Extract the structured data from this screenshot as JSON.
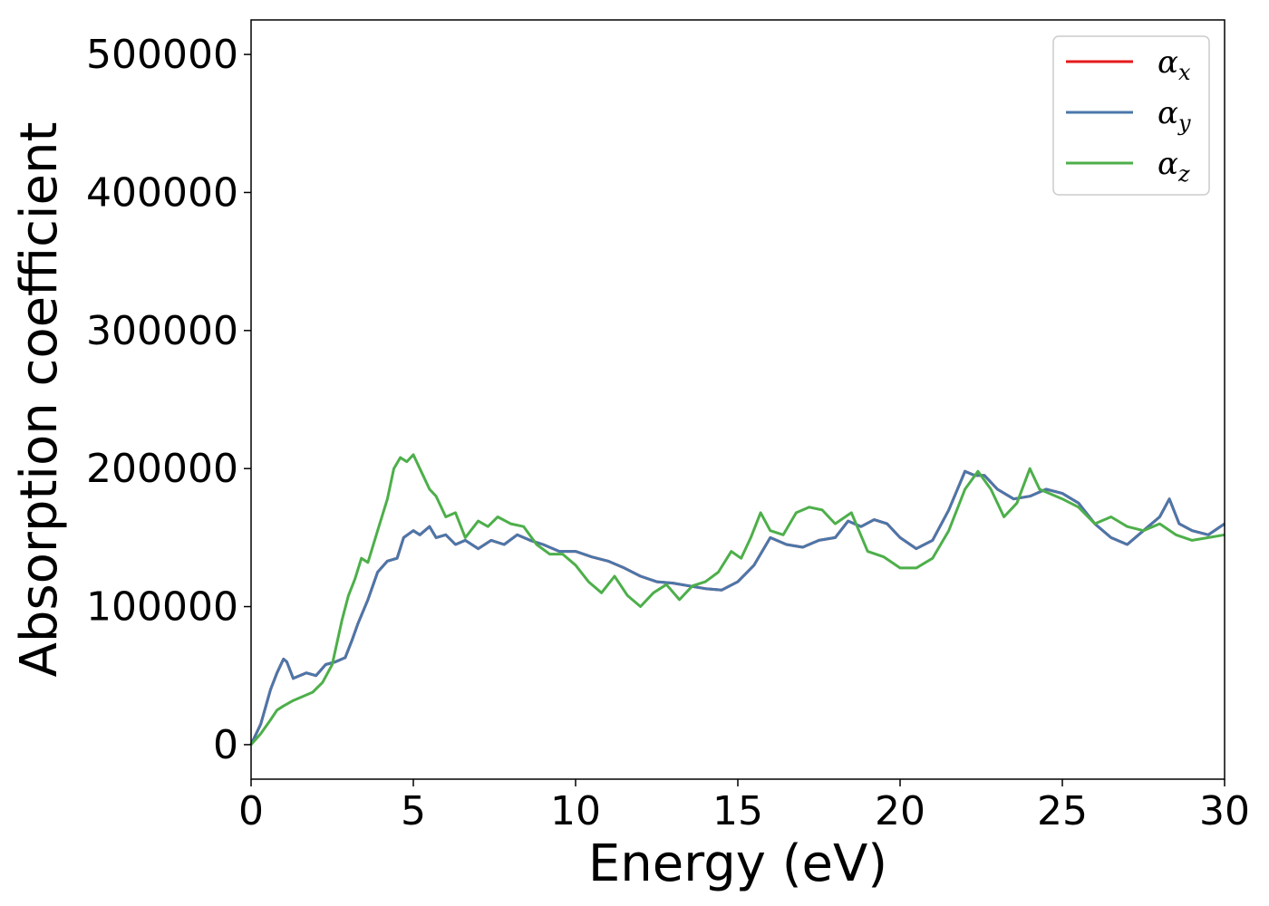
{
  "chart_data": {
    "type": "line",
    "xlabel": "Energy (eV)",
    "ylabel": "Absorption coefficient",
    "xlim": [
      0,
      30
    ],
    "ylim": [
      -25000,
      525000
    ],
    "xticks": [
      0,
      5,
      10,
      15,
      20,
      25,
      30
    ],
    "xtick_labels": [
      "0",
      "5",
      "10",
      "15",
      "20",
      "25",
      "30"
    ],
    "yticks": [
      0,
      100000,
      200000,
      300000,
      400000,
      500000
    ],
    "ytick_labels": [
      "0",
      "100000",
      "200000",
      "300000",
      "400000",
      "500000"
    ],
    "grid": false,
    "legend_position": "top-right",
    "series": [
      {
        "name": "α",
        "subscript": "x",
        "color": "#e41a1c",
        "x": [
          0,
          0.3,
          0.6,
          0.8,
          1.0,
          1.1,
          1.3,
          1.5,
          1.7,
          2.0,
          2.3,
          2.6,
          2.9,
          3.1,
          3.3,
          3.6,
          3.9,
          4.2,
          4.5,
          4.7,
          5.0,
          5.2,
          5.5,
          5.7,
          6.0,
          6.3,
          6.6,
          7.0,
          7.4,
          7.8,
          8.2,
          8.6,
          9.0,
          9.5,
          10.0,
          10.5,
          11.0,
          11.5,
          12.0,
          12.5,
          13.0,
          13.5,
          14.0,
          14.5,
          15.0,
          15.5,
          16.0,
          16.5,
          17.0,
          17.5,
          18.0,
          18.4,
          18.8,
          19.2,
          19.6,
          20.0,
          20.5,
          21.0,
          21.5,
          22.0,
          22.3,
          22.6,
          23.0,
          23.5,
          24.0,
          24.5,
          25.0,
          25.5,
          26.0,
          26.5,
          27.0,
          27.5,
          28.0,
          28.3,
          28.6,
          29.0,
          29.5,
          30.0
        ],
        "y": [
          0,
          15000,
          40000,
          52000,
          62000,
          60000,
          48000,
          50000,
          52000,
          50000,
          58000,
          60000,
          63000,
          75000,
          88000,
          105000,
          125000,
          133000,
          135000,
          150000,
          155000,
          152000,
          158000,
          150000,
          152000,
          145000,
          148000,
          142000,
          148000,
          145000,
          152000,
          148000,
          145000,
          140000,
          140000,
          136000,
          133000,
          128000,
          122000,
          118000,
          117000,
          115000,
          113000,
          112000,
          118000,
          130000,
          150000,
          145000,
          143000,
          148000,
          150000,
          162000,
          158000,
          163000,
          160000,
          150000,
          142000,
          148000,
          170000,
          198000,
          195000,
          195000,
          185000,
          178000,
          180000,
          185000,
          182000,
          175000,
          160000,
          150000,
          145000,
          155000,
          165000,
          178000,
          160000,
          155000,
          152000,
          160000
        ]
      },
      {
        "name": "α",
        "subscript": "y",
        "color": "#4a77aa",
        "x": [
          0,
          0.3,
          0.6,
          0.8,
          1.0,
          1.1,
          1.3,
          1.5,
          1.7,
          2.0,
          2.3,
          2.6,
          2.9,
          3.1,
          3.3,
          3.6,
          3.9,
          4.2,
          4.5,
          4.7,
          5.0,
          5.2,
          5.5,
          5.7,
          6.0,
          6.3,
          6.6,
          7.0,
          7.4,
          7.8,
          8.2,
          8.6,
          9.0,
          9.5,
          10.0,
          10.5,
          11.0,
          11.5,
          12.0,
          12.5,
          13.0,
          13.5,
          14.0,
          14.5,
          15.0,
          15.5,
          16.0,
          16.5,
          17.0,
          17.5,
          18.0,
          18.4,
          18.8,
          19.2,
          19.6,
          20.0,
          20.5,
          21.0,
          21.5,
          22.0,
          22.3,
          22.6,
          23.0,
          23.5,
          24.0,
          24.5,
          25.0,
          25.5,
          26.0,
          26.5,
          27.0,
          27.5,
          28.0,
          28.3,
          28.6,
          29.0,
          29.5,
          30.0
        ],
        "y": [
          0,
          15000,
          40000,
          52000,
          62000,
          60000,
          48000,
          50000,
          52000,
          50000,
          58000,
          60000,
          63000,
          75000,
          88000,
          105000,
          125000,
          133000,
          135000,
          150000,
          155000,
          152000,
          158000,
          150000,
          152000,
          145000,
          148000,
          142000,
          148000,
          145000,
          152000,
          148000,
          145000,
          140000,
          140000,
          136000,
          133000,
          128000,
          122000,
          118000,
          117000,
          115000,
          113000,
          112000,
          118000,
          130000,
          150000,
          145000,
          143000,
          148000,
          150000,
          162000,
          158000,
          163000,
          160000,
          150000,
          142000,
          148000,
          170000,
          198000,
          195000,
          195000,
          185000,
          178000,
          180000,
          185000,
          182000,
          175000,
          160000,
          150000,
          145000,
          155000,
          165000,
          178000,
          160000,
          155000,
          152000,
          160000
        ]
      },
      {
        "name": "α",
        "subscript": "z",
        "color": "#4daf4a",
        "x": [
          0,
          0.3,
          0.6,
          0.8,
          1.0,
          1.3,
          1.6,
          1.9,
          2.2,
          2.5,
          2.8,
          3.0,
          3.2,
          3.4,
          3.6,
          3.9,
          4.2,
          4.4,
          4.6,
          4.8,
          5.0,
          5.2,
          5.5,
          5.7,
          6.0,
          6.3,
          6.6,
          7.0,
          7.3,
          7.6,
          8.0,
          8.4,
          8.8,
          9.2,
          9.6,
          10.0,
          10.4,
          10.8,
          11.2,
          11.6,
          12.0,
          12.4,
          12.8,
          13.2,
          13.6,
          14.0,
          14.4,
          14.8,
          15.1,
          15.4,
          15.7,
          16.0,
          16.4,
          16.8,
          17.2,
          17.6,
          18.0,
          18.5,
          19.0,
          19.5,
          20.0,
          20.5,
          21.0,
          21.5,
          22.0,
          22.4,
          22.8,
          23.2,
          23.6,
          24.0,
          24.3,
          24.6,
          25.0,
          25.5,
          26.0,
          26.5,
          27.0,
          27.5,
          28.0,
          28.5,
          29.0,
          29.5,
          30.0
        ],
        "y": [
          0,
          8000,
          18000,
          25000,
          28000,
          32000,
          35000,
          38000,
          45000,
          58000,
          90000,
          108000,
          120000,
          135000,
          132000,
          155000,
          178000,
          200000,
          208000,
          205000,
          210000,
          200000,
          185000,
          180000,
          165000,
          168000,
          150000,
          162000,
          158000,
          165000,
          160000,
          158000,
          145000,
          138000,
          138000,
          130000,
          118000,
          110000,
          122000,
          108000,
          100000,
          110000,
          116000,
          105000,
          115000,
          118000,
          125000,
          140000,
          135000,
          150000,
          168000,
          155000,
          152000,
          168000,
          172000,
          170000,
          160000,
          168000,
          140000,
          136000,
          128000,
          128000,
          135000,
          155000,
          185000,
          198000,
          185000,
          165000,
          175000,
          200000,
          185000,
          182000,
          178000,
          172000,
          160000,
          165000,
          158000,
          155000,
          160000,
          152000,
          148000,
          150000,
          152000
        ]
      }
    ]
  }
}
